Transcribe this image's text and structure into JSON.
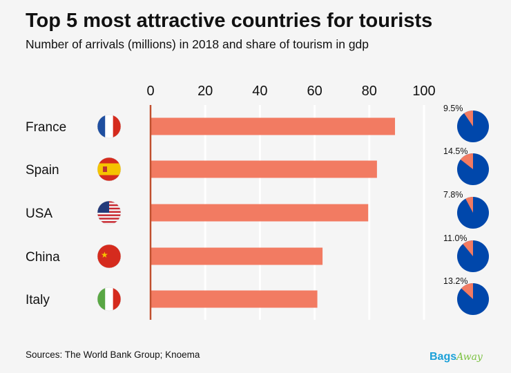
{
  "title": "Top 5 most attractive countries for tourists",
  "subtitle": "Number of arrivals (millions) in 2018 and share of tourism in gdp",
  "source": "Sources: The World Bank Group; Knoema",
  "logo": {
    "part1": "Bags",
    "part2": "Away"
  },
  "colors": {
    "bar": "#f27b62",
    "pie_main": "#0047ab",
    "pie_share": "#f27b62",
    "axis": "#c0502f"
  },
  "chart_data": {
    "type": "bar",
    "orientation": "horizontal",
    "categories": [
      "France",
      "Spain",
      "USA",
      "China",
      "Italy"
    ],
    "flags": [
      "france-flag",
      "spain-flag",
      "usa-flag",
      "china-flag",
      "italy-flag"
    ],
    "values": [
      89.4,
      82.8,
      79.6,
      62.9,
      61.0
    ],
    "xlim": [
      0,
      100
    ],
    "xticks": [
      0,
      20,
      40,
      60,
      80,
      100
    ],
    "grid": true,
    "gdp_share": {
      "type": "pie",
      "values": [
        9.5,
        14.5,
        7.8,
        11.0,
        13.2
      ],
      "labels": [
        "9.5%",
        "14.5%",
        "7.8%",
        "11.0%",
        "13.2%"
      ]
    }
  }
}
